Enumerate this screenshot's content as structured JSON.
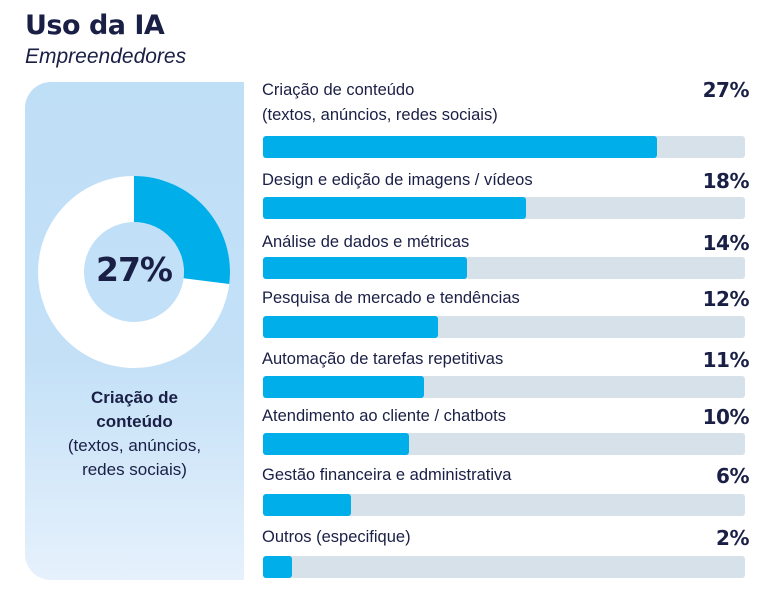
{
  "header": {
    "title": "Uso da IA",
    "subtitle": "Empreendedores"
  },
  "colors": {
    "accent": "#00aeea",
    "track": "#d7e1ea",
    "text": "#1a1f45",
    "donut_rest": "#ffffff"
  },
  "highlight": {
    "value": "27%",
    "label_bold_1": "Criação de",
    "label_bold_2": "conteúdo",
    "label_1": "(textos, anúncios,",
    "label_2": "redes sociais)",
    "fraction": 0.27
  },
  "chart_data": {
    "type": "bar",
    "orientation": "horizontal",
    "categories": [
      "Criação de conteúdo\n(textos, anúncios, redes sociais)",
      "Design e edição de imagens / vídeos",
      "Análise de dados e métricas",
      "Pesquisa de mercado e tendências",
      "Automação de tarefas repetitivas",
      "Atendimento ao cliente / chatbots",
      "Gestão financeira e administrativa",
      "Outros (especifique)"
    ],
    "values": [
      27,
      18,
      14,
      12,
      11,
      10,
      6,
      2
    ],
    "labels": [
      "27%",
      "18%",
      "14%",
      "12%",
      "11%",
      "10%",
      "6%",
      "2%"
    ],
    "xlim": [
      0,
      33
    ],
    "grid": false
  }
}
